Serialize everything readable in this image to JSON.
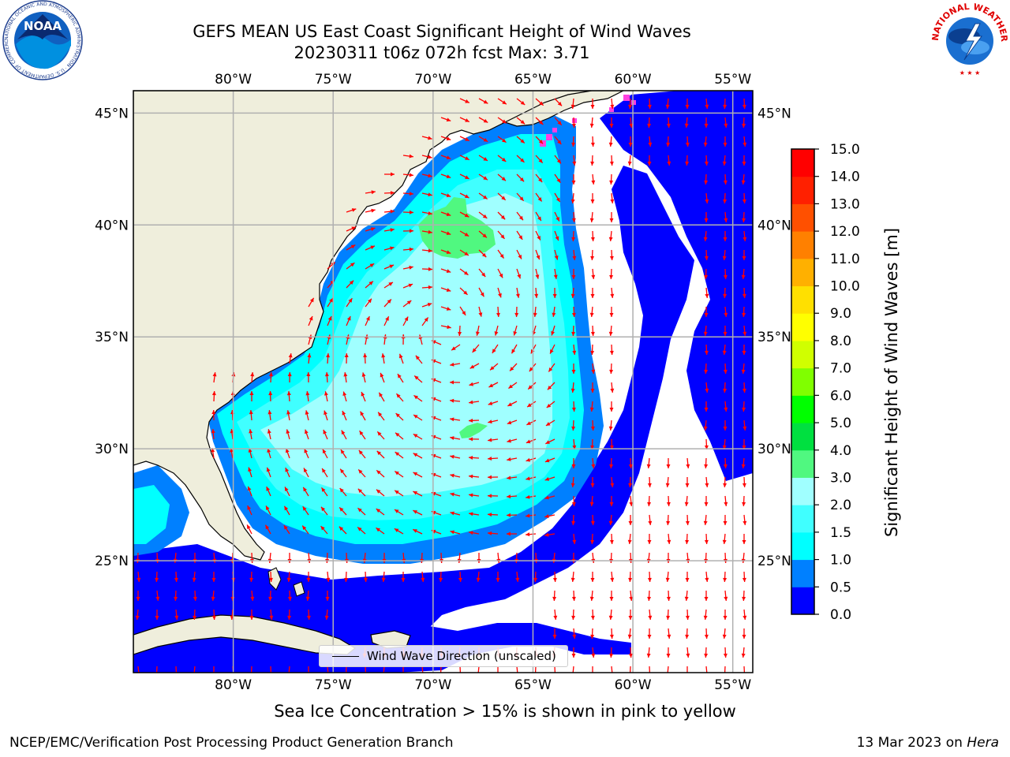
{
  "title_line1": "GEFS MEAN US East Coast Significant Height of Wind Waves",
  "title_line2": "20230311 t06z 072h fcst   Max: 3.71",
  "noaa_logo_text": "NOAA",
  "noaa_ring_text": "NATIONAL OCEANIC AND ATMOSPHERIC ADMINISTRATION · U.S. DEPARTMENT OF COMMERCE",
  "nws_ring_text": "NATIONAL WEATHER SERVICE",
  "map": {
    "lon_range": [
      -85,
      -54
    ],
    "lat_range": [
      20,
      46
    ],
    "lon_ticks": [
      "80°W",
      "75°W",
      "70°W",
      "65°W",
      "60°W",
      "55°W"
    ],
    "lat_ticks": [
      "45°N",
      "40°N",
      "35°N",
      "30°N",
      "25°N"
    ],
    "grid": true,
    "land_color": "#efeedc",
    "ocean_nodata_color": "#ffffff",
    "arrow_color": "#ff0000"
  },
  "legend": {
    "label": "Wind Wave Direction (unscaled)",
    "placement": "bottom-center"
  },
  "colorbar": {
    "title": "Significant Height of Wind Waves [m]",
    "levels": [
      "0.0",
      "0.5",
      "1.0",
      "1.5",
      "2.0",
      "3.0",
      "4.0",
      "5.0",
      "6.0",
      "7.0",
      "8.0",
      "9.0",
      "10.0",
      "11.0",
      "12.0",
      "13.0",
      "14.0",
      "15.0"
    ],
    "colors": [
      "#0000ff",
      "#0080ff",
      "#00ffff",
      "#40ffff",
      "#a0ffff",
      "#50f880",
      "#00e040",
      "#00ff00",
      "#80ff00",
      "#d0ff00",
      "#ffff00",
      "#ffe000",
      "#ffb000",
      "#ff8000",
      "#ff5000",
      "#ff2000",
      "#ff0000"
    ]
  },
  "subcaption": "Sea Ice Concentration > 15% is shown in pink to yellow",
  "footer_left": "NCEP/EMC/Verification Post Processing Product Generation Branch",
  "footer_right_date": "13 Mar 2023 on ",
  "footer_right_host": "Hera"
}
